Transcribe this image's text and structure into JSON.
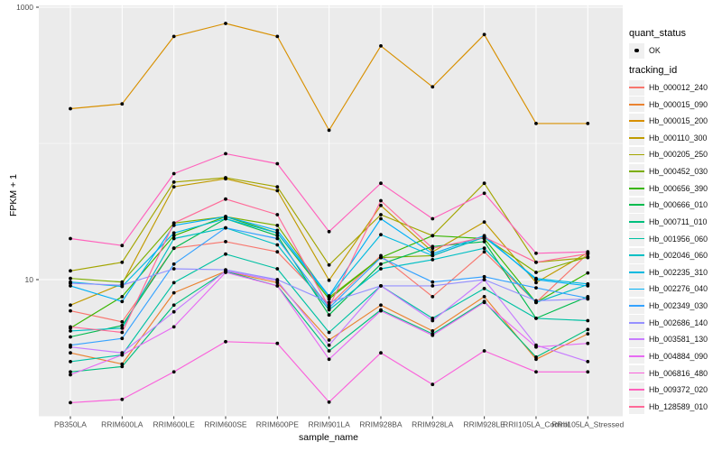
{
  "figure_title": "",
  "axes": {
    "y_title": "FPKM + 1",
    "x_title": "sample_name"
  },
  "legend": {
    "quant_status_title": "quant_status",
    "ok_label": "OK",
    "tracking_id_title": "tracking_id"
  },
  "colors": {
    "panel_bg": "#ebebeb",
    "grid": "#ffffff",
    "axis_text": "#4d4d4d",
    "tick_mark": "#333333",
    "point": "#000000",
    "legend_key_bg": "#f0f0f0"
  },
  "chart_data": {
    "type": "line",
    "title": "",
    "xlabel": "sample_name",
    "ylabel": "FPKM + 1",
    "y_scale": "log10",
    "ylim": [
      1,
      1000
    ],
    "y_tick_values": [
      10,
      1000
    ],
    "y_tick_labels": [
      "10",
      "1000"
    ],
    "y_minor_gridlines": [
      100
    ],
    "grid": true,
    "legend_position": "right",
    "point_marker": "filled-circle",
    "quant_status": "OK",
    "categories": [
      "PB350LA",
      "RRIM600LA",
      "RRIM600LE",
      "RRIM600SE",
      "RRIM600PE",
      "RRIM901LA",
      "RRIM928BA",
      "RRIM928LA",
      "RRIM928LE",
      "RRII105LA_Control",
      "RRII105LA_Stressed"
    ],
    "series": [
      {
        "name": "Hb_000012_240",
        "color": "#F8766D",
        "values": [
          5.9,
          4.9,
          17,
          19,
          16,
          6.5,
          15,
          7.5,
          16,
          6.8,
          15.5
        ]
      },
      {
        "name": "Hb_000015_090",
        "color": "#EA8331",
        "values": [
          2.9,
          2.4,
          8.0,
          11.5,
          9.5,
          3.6,
          6.5,
          4.2,
          7.5,
          2.6,
          4.0
        ]
      },
      {
        "name": "Hb_000015_200",
        "color": "#D89000",
        "values": [
          180,
          195,
          610,
          760,
          610,
          125,
          520,
          260,
          630,
          140,
          140
        ]
      },
      {
        "name": "Hb_000110_300",
        "color": "#C09B00",
        "values": [
          6.5,
          9.3,
          48,
          55,
          45,
          9.9,
          35,
          16,
          26.5,
          9.5,
          15.8
        ]
      },
      {
        "name": "Hb_000205_250",
        "color": "#A3A500",
        "values": [
          11.6,
          13.4,
          52,
          56,
          48,
          12.8,
          30,
          21,
          51,
          13.4,
          14.5
        ]
      },
      {
        "name": "Hb_000452_030",
        "color": "#7CAE00",
        "values": [
          10.2,
          9.6,
          26,
          29,
          25,
          7.4,
          14.5,
          15,
          20.5,
          11.3,
          14.7
        ]
      },
      {
        "name": "Hb_000656_390",
        "color": "#39B600",
        "values": [
          4.4,
          7.5,
          21,
          29,
          22,
          7.2,
          14.5,
          21,
          20,
          6.8,
          11.2
        ]
      },
      {
        "name": "Hb_000666_010",
        "color": "#00BB4E",
        "values": [
          3.8,
          4.6,
          17,
          28,
          21,
          5.5,
          13,
          17.5,
          19,
          5.2,
          7.5
        ]
      },
      {
        "name": "Hb_000711_010",
        "color": "#00BF7D",
        "values": [
          2.1,
          2.3,
          6.5,
          11.5,
          9.0,
          3.0,
          6.0,
          4.0,
          6.9,
          2.7,
          4.3
        ]
      },
      {
        "name": "Hb_001956_060",
        "color": "#00C1A3",
        "values": [
          2.5,
          2.8,
          9.5,
          15.4,
          12,
          4.1,
          9.0,
          5.2,
          8.6,
          5.2,
          5.0
        ]
      },
      {
        "name": "Hb_002046_060",
        "color": "#00BFC4",
        "values": [
          4.2,
          4.4,
          20,
          24,
          18,
          6.0,
          12,
          14,
          17,
          6.8,
          9.2
        ]
      },
      {
        "name": "Hb_002235_310",
        "color": "#00BAE0",
        "values": [
          9.6,
          8.9,
          22,
          28,
          22,
          7.5,
          21.4,
          15,
          20.5,
          10.2,
          9.3
        ]
      },
      {
        "name": "Hb_002276_040",
        "color": "#00B0F6",
        "values": [
          9.0,
          6.9,
          25,
          29,
          23,
          7.6,
          28,
          15.5,
          21,
          10.0,
          9.0
        ]
      },
      {
        "name": "Hb_002349_030",
        "color": "#35A2FF",
        "values": [
          3.3,
          3.7,
          13,
          24,
          20,
          6.2,
          14.5,
          9.6,
          10.5,
          8.7,
          7.3
        ]
      },
      {
        "name": "Hb_002686_140",
        "color": "#9590FF",
        "values": [
          9.4,
          9.1,
          12,
          11.8,
          10,
          6.8,
          9.0,
          9.0,
          10,
          7.0,
          7.2
        ]
      },
      {
        "name": "Hb_003581_130",
        "color": "#C77CFF",
        "values": [
          3.2,
          2.9,
          5.8,
          11.6,
          9.8,
          3.3,
          9.0,
          5.0,
          10.0,
          3.3,
          2.5
        ]
      },
      {
        "name": "Hb_004884_090",
        "color": "#E76BF3",
        "values": [
          2.0,
          2.8,
          4.5,
          11.3,
          9.0,
          2.6,
          5.9,
          3.9,
          6.8,
          3.2,
          3.4
        ]
      },
      {
        "name": "Hb_006816_480",
        "color": "#FA62DB",
        "values": [
          1.25,
          1.32,
          2.1,
          3.5,
          3.4,
          1.26,
          2.9,
          1.7,
          3.0,
          2.1,
          2.1
        ]
      },
      {
        "name": "Hb_009372_020",
        "color": "#FF62BC",
        "values": [
          20,
          17.8,
          60,
          84,
          71,
          22.5,
          51,
          28,
          43,
          15.6,
          16
        ]
      },
      {
        "name": "Hb_128589_010",
        "color": "#FF6A98",
        "values": [
          4.5,
          4.1,
          26,
          39,
          30,
          6.3,
          38,
          17,
          20.5,
          13.4,
          15.5
        ]
      }
    ]
  }
}
